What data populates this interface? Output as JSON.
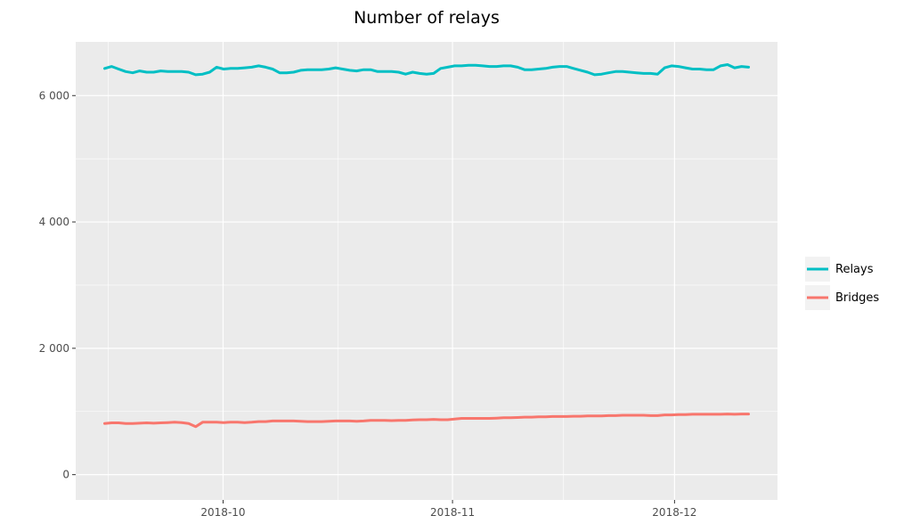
{
  "chart_data": {
    "type": "line",
    "title": "Number of relays",
    "xlabel": "",
    "ylabel": "",
    "x_start": "2018-09-15",
    "x_end": "2018-12-11",
    "x_ticks": [
      {
        "date": "2018-10-01",
        "label": "2018-10"
      },
      {
        "date": "2018-11-01",
        "label": "2018-11"
      },
      {
        "date": "2018-12-01",
        "label": "2018-12"
      }
    ],
    "ylim": [
      -400,
      6850
    ],
    "y_ticks": [
      {
        "value": 0,
        "label": "0"
      },
      {
        "value": 2000,
        "label": "2 000"
      },
      {
        "value": 4000,
        "label": "4 000"
      },
      {
        "value": 6000,
        "label": "6 000"
      }
    ],
    "grid": true,
    "legend_position": "right",
    "series": [
      {
        "name": "Relays",
        "color": "#00BFC4",
        "values": [
          6430,
          6460,
          6420,
          6380,
          6360,
          6390,
          6370,
          6370,
          6390,
          6380,
          6380,
          6380,
          6370,
          6330,
          6340,
          6370,
          6450,
          6420,
          6430,
          6430,
          6440,
          6450,
          6470,
          6450,
          6420,
          6360,
          6360,
          6370,
          6400,
          6410,
          6410,
          6410,
          6420,
          6440,
          6420,
          6400,
          6390,
          6410,
          6410,
          6380,
          6380,
          6380,
          6370,
          6340,
          6370,
          6350,
          6340,
          6350,
          6430,
          6450,
          6470,
          6470,
          6480,
          6480,
          6470,
          6460,
          6460,
          6470,
          6470,
          6450,
          6410,
          6410,
          6420,
          6430,
          6450,
          6460,
          6460,
          6430,
          6400,
          6370,
          6330,
          6340,
          6360,
          6380,
          6380,
          6370,
          6360,
          6350,
          6350,
          6340,
          6440,
          6470,
          6460,
          6440,
          6420,
          6420,
          6410,
          6410,
          6470,
          6490,
          6440,
          6460,
          6450
        ]
      },
      {
        "name": "Bridges",
        "color": "#F8766D",
        "values": [
          810,
          820,
          820,
          810,
          810,
          815,
          820,
          815,
          820,
          825,
          830,
          825,
          810,
          760,
          830,
          830,
          830,
          825,
          830,
          830,
          825,
          830,
          840,
          840,
          850,
          850,
          850,
          850,
          845,
          840,
          840,
          840,
          845,
          850,
          850,
          850,
          845,
          850,
          860,
          860,
          860,
          855,
          860,
          860,
          865,
          870,
          870,
          875,
          870,
          870,
          880,
          890,
          890,
          890,
          890,
          890,
          895,
          900,
          900,
          905,
          910,
          910,
          915,
          915,
          920,
          920,
          920,
          925,
          925,
          930,
          930,
          930,
          935,
          935,
          940,
          940,
          940,
          940,
          935,
          935,
          945,
          945,
          950,
          950,
          955,
          955,
          955,
          955,
          955,
          960,
          955,
          960,
          960
        ]
      }
    ]
  }
}
